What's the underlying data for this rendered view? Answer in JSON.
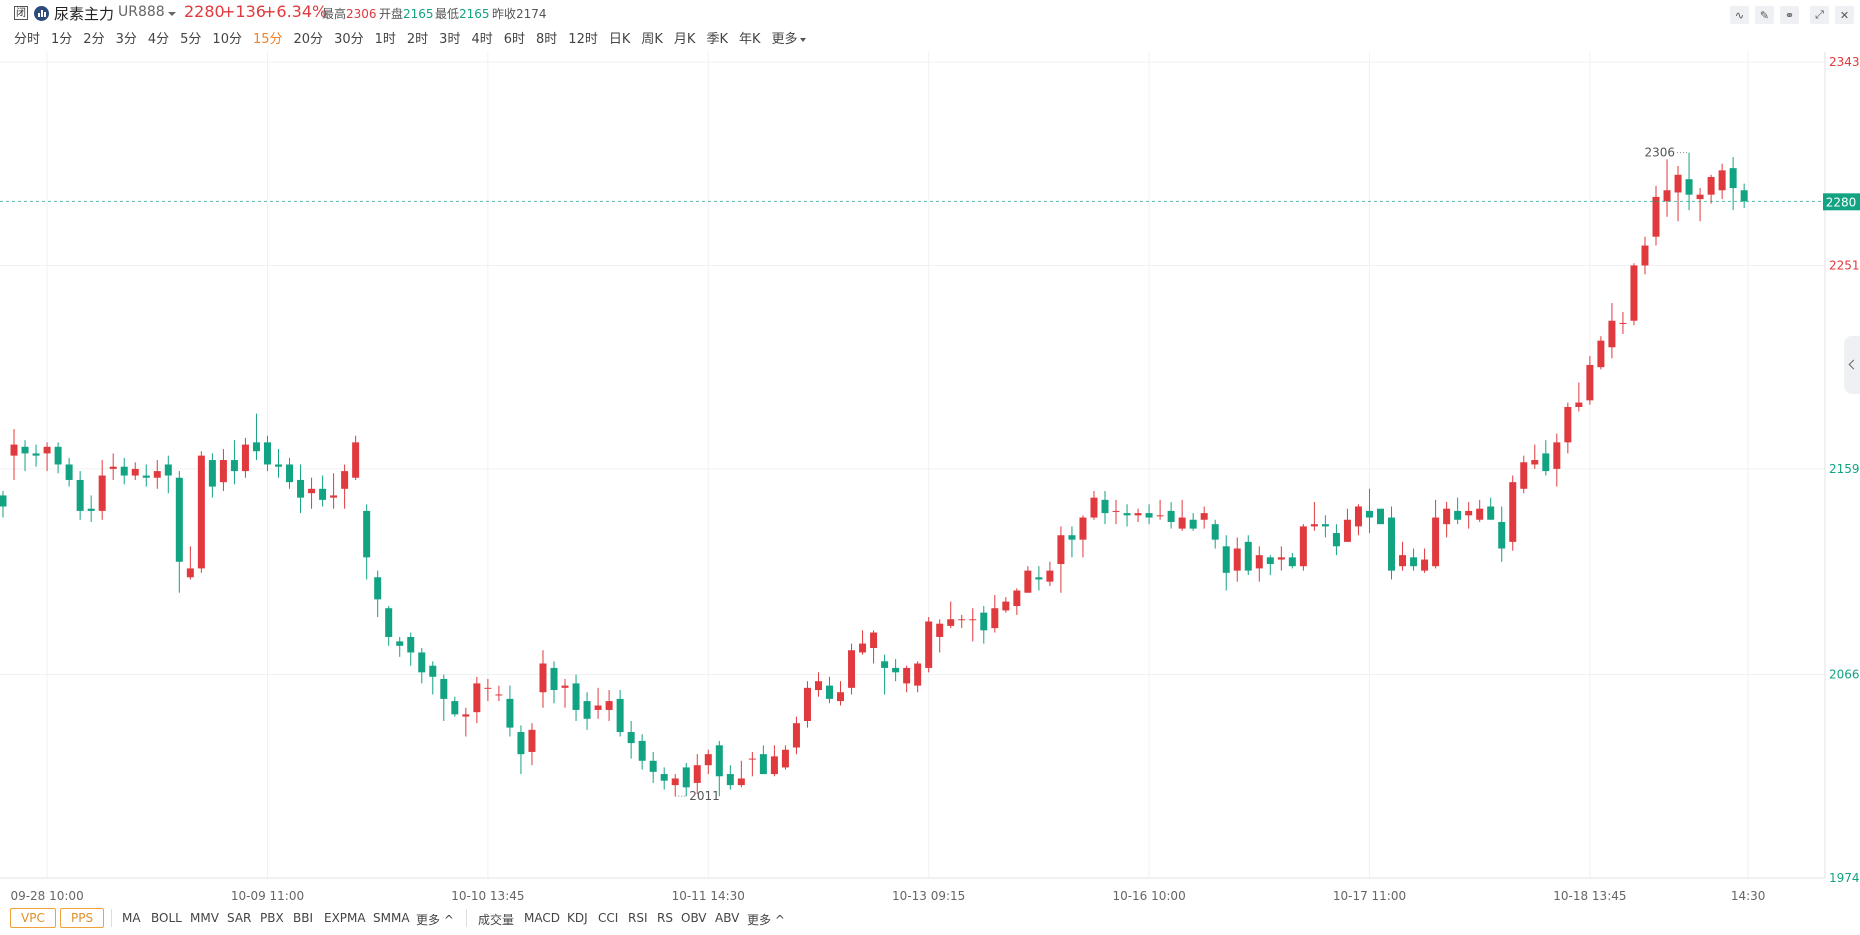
{
  "header": {
    "status": "闭",
    "name": "尿素主力",
    "code": "UR888",
    "price": "2280",
    "change": "+136",
    "change_pct": "+6.34%",
    "stats": [
      {
        "label": "最高",
        "value": "2306",
        "color": "red"
      },
      {
        "label": "开盘",
        "value": "2165",
        "color": "green"
      },
      {
        "label": "最低",
        "value": "2165",
        "color": "green"
      },
      {
        "label": "昨收",
        "value": "2174",
        "color": "gray"
      }
    ],
    "tools": [
      "indicator-icon",
      "draw-pen-icon",
      "link-icon",
      "expand-icon",
      "close-icon"
    ]
  },
  "periods": {
    "items": [
      "分时",
      "1分",
      "2分",
      "3分",
      "4分",
      "5分",
      "10分",
      "15分",
      "20分",
      "30分",
      "1时",
      "2时",
      "3时",
      "4时",
      "6时",
      "8时",
      "12时",
      "日K",
      "周K",
      "月K",
      "季K",
      "年K"
    ],
    "active": "15分",
    "more": "更多"
  },
  "indicators": {
    "boxed": [
      "VPC",
      "PPS"
    ],
    "main": [
      "MA",
      "BOLL",
      "MMV",
      "SAR",
      "PBX",
      "BBI",
      "EXPMA",
      "SMMA"
    ],
    "main_more": "更多 ^",
    "sub": [
      "成交量",
      "MACD",
      "KDJ",
      "CCI",
      "RSI",
      "RS",
      "OBV",
      "ABV"
    ],
    "sub_more": "更多 ^"
  },
  "colors": {
    "up": "#e0393e",
    "down": "#12a383"
  },
  "chart_data": {
    "type": "candlestick",
    "y_axis_ticks": [
      2343,
      2251,
      2159,
      2066,
      1974
    ],
    "ylim": [
      1974,
      2343
    ],
    "current_price": 2280,
    "high_annotation": "2306",
    "low_annotation": "2011",
    "x_ticks": [
      "09-28 10:00",
      "10-09 11:00",
      "10-10 13:45",
      "10-11 14:30",
      "10-13 09:15",
      "10-16 10:00",
      "10-17 11:00",
      "10-18 13:45",
      "14:30"
    ],
    "candles": [
      [
        2147,
        2142,
        2149,
        2137
      ],
      [
        2165,
        2170,
        2177,
        2154
      ],
      [
        2169,
        2166,
        2172,
        2158
      ],
      [
        2166,
        2165,
        2170,
        2160
      ],
      [
        2166,
        2169,
        2171,
        2158
      ],
      [
        2169,
        2161,
        2171,
        2157
      ],
      [
        2161,
        2154,
        2164,
        2151
      ],
      [
        2154,
        2140,
        2158,
        2136
      ],
      [
        2141,
        2140,
        2147,
        2135
      ],
      [
        2140,
        2156,
        2163,
        2136
      ],
      [
        2159,
        2160,
        2166,
        2154
      ],
      [
        2160,
        2156,
        2164,
        2152
      ],
      [
        2156,
        2159,
        2162,
        2154
      ],
      [
        2156,
        2155,
        2161,
        2151
      ],
      [
        2155,
        2158,
        2163,
        2150
      ],
      [
        2161,
        2156,
        2165,
        2148
      ],
      [
        2155,
        2117,
        2158,
        2103
      ],
      [
        2110,
        2114,
        2124,
        2109
      ],
      [
        2114,
        2165,
        2167,
        2112
      ],
      [
        2163,
        2151,
        2166,
        2146
      ],
      [
        2153,
        2163,
        2168,
        2149
      ],
      [
        2163,
        2158,
        2172,
        2152
      ],
      [
        2158,
        2170,
        2173,
        2155
      ],
      [
        2171,
        2167,
        2184,
        2163
      ],
      [
        2171,
        2161,
        2174,
        2158
      ],
      [
        2161,
        2160,
        2168,
        2155
      ],
      [
        2161,
        2153,
        2164,
        2150
      ],
      [
        2154,
        2146,
        2161,
        2139
      ],
      [
        2148,
        2150,
        2155,
        2141
      ],
      [
        2150,
        2145,
        2156,
        2142
      ],
      [
        2146,
        2147,
        2157,
        2141
      ],
      [
        2150,
        2158,
        2161,
        2141
      ],
      [
        2155,
        2171,
        2174,
        2154
      ],
      [
        2140,
        2119,
        2143,
        2109
      ],
      [
        2110,
        2100,
        2113,
        2092
      ],
      [
        2096,
        2083,
        2097,
        2079
      ],
      [
        2081,
        2079,
        2083,
        2074
      ],
      [
        2083,
        2076,
        2085,
        2070
      ],
      [
        2076,
        2067,
        2078,
        2062
      ],
      [
        2070,
        2065,
        2072,
        2057
      ],
      [
        2064,
        2055,
        2066,
        2045
      ],
      [
        2054,
        2048,
        2056,
        2047
      ],
      [
        2047,
        2048,
        2051,
        2038
      ],
      [
        2049,
        2062,
        2065,
        2044
      ],
      [
        2060,
        2060,
        2064,
        2054
      ],
      [
        2057,
        2057,
        2061,
        2054
      ],
      [
        2055,
        2042,
        2061,
        2038
      ],
      [
        2040,
        2030,
        2043,
        2021
      ],
      [
        2031,
        2041,
        2044,
        2025
      ],
      [
        2058,
        2071,
        2077,
        2051
      ],
      [
        2069,
        2059,
        2072,
        2053
      ],
      [
        2060,
        2061,
        2064,
        2051
      ],
      [
        2062,
        2050,
        2066,
        2045
      ],
      [
        2054,
        2046,
        2058,
        2041
      ],
      [
        2050,
        2052,
        2060,
        2046
      ],
      [
        2050,
        2054,
        2059,
        2045
      ],
      [
        2055,
        2040,
        2059,
        2038
      ],
      [
        2040,
        2035,
        2045,
        2028
      ],
      [
        2036,
        2027,
        2039,
        2023
      ],
      [
        2027,
        2022,
        2031,
        2017
      ],
      [
        2021,
        2018,
        2024,
        2014
      ],
      [
        2016,
        2019,
        2021,
        2011
      ],
      [
        2024,
        2015,
        2026,
        2011
      ],
      [
        2017,
        2025,
        2030,
        2012
      ],
      [
        2025,
        2030,
        2032,
        2021
      ],
      [
        2034,
        2020,
        2036,
        2011
      ],
      [
        2021,
        2016,
        2025,
        2014
      ],
      [
        2016,
        2019,
        2027,
        2015
      ],
      [
        2028,
        2028,
        2031,
        2020
      ],
      [
        2030,
        2021,
        2034,
        2021
      ],
      [
        2021,
        2029,
        2034,
        2020
      ],
      [
        2024,
        2032,
        2034,
        2023
      ],
      [
        2033,
        2044,
        2047,
        2030
      ],
      [
        2045,
        2060,
        2063,
        2042
      ],
      [
        2059,
        2063,
        2067,
        2056
      ],
      [
        2061,
        2055,
        2065,
        2053
      ],
      [
        2054,
        2058,
        2063,
        2052
      ],
      [
        2060,
        2077,
        2080,
        2057
      ],
      [
        2076,
        2080,
        2086,
        2075
      ],
      [
        2078,
        2085,
        2086,
        2071
      ],
      [
        2072,
        2069,
        2075,
        2057
      ],
      [
        2069,
        2067,
        2073,
        2063
      ],
      [
        2062,
        2069,
        2070,
        2058
      ],
      [
        2061,
        2071,
        2072,
        2058
      ],
      [
        2069,
        2090,
        2092,
        2067
      ],
      [
        2083,
        2089,
        2091,
        2076
      ],
      [
        2088,
        2091,
        2099,
        2087
      ],
      [
        2091,
        2091,
        2093,
        2087
      ],
      [
        2091,
        2091,
        2096,
        2081
      ],
      [
        2094,
        2086,
        2097,
        2080
      ],
      [
        2087,
        2096,
        2102,
        2085
      ],
      [
        2095,
        2099,
        2101,
        2094
      ],
      [
        2097,
        2104,
        2105,
        2093
      ],
      [
        2103,
        2113,
        2115,
        2103
      ],
      [
        2110,
        2109,
        2115,
        2104
      ],
      [
        2108,
        2113,
        2117,
        2106
      ],
      [
        2116,
        2129,
        2133,
        2103
      ],
      [
        2129,
        2127,
        2133,
        2119
      ],
      [
        2127,
        2137,
        2138,
        2119
      ],
      [
        2137,
        2146,
        2149,
        2136
      ],
      [
        2145,
        2139,
        2149,
        2134
      ],
      [
        2140,
        2140,
        2145,
        2134
      ],
      [
        2139,
        2138,
        2143,
        2133
      ],
      [
        2138,
        2139,
        2141,
        2135
      ],
      [
        2139,
        2137,
        2143,
        2134
      ],
      [
        2138,
        2138,
        2145,
        2136
      ],
      [
        2140,
        2135,
        2144,
        2132
      ],
      [
        2132,
        2137,
        2145,
        2131
      ],
      [
        2136,
        2132,
        2139,
        2131
      ],
      [
        2136,
        2139,
        2142,
        2132
      ],
      [
        2134,
        2127,
        2136,
        2123
      ],
      [
        2124,
        2112,
        2129,
        2104
      ],
      [
        2113,
        2123,
        2128,
        2108
      ],
      [
        2126,
        2113,
        2129,
        2111
      ],
      [
        2114,
        2120,
        2124,
        2108
      ],
      [
        2119,
        2116,
        2120,
        2111
      ],
      [
        2118,
        2119,
        2124,
        2113
      ],
      [
        2119,
        2115,
        2121,
        2114
      ],
      [
        2115,
        2133,
        2134,
        2113
      ],
      [
        2133,
        2134,
        2144,
        2131
      ],
      [
        2134,
        2133,
        2138,
        2128
      ],
      [
        2130,
        2124,
        2134,
        2120
      ],
      [
        2126,
        2136,
        2141,
        2126
      ],
      [
        2133,
        2142,
        2143,
        2129
      ],
      [
        2140,
        2137,
        2150,
        2130
      ],
      [
        2141,
        2134,
        2140,
        2135
      ],
      [
        2137,
        2113,
        2142,
        2109
      ],
      [
        2115,
        2120,
        2126,
        2113
      ],
      [
        2119,
        2115,
        2123,
        2113
      ],
      [
        2113,
        2118,
        2123,
        2112
      ],
      [
        2115,
        2137,
        2145,
        2114
      ],
      [
        2134,
        2141,
        2144,
        2128
      ],
      [
        2140,
        2136,
        2146,
        2134
      ],
      [
        2138,
        2140,
        2144,
        2132
      ],
      [
        2136,
        2141,
        2145,
        2135
      ],
      [
        2142,
        2136,
        2146,
        2136
      ],
      [
        2135,
        2123,
        2142,
        2117
      ],
      [
        2126,
        2153,
        2156,
        2122
      ],
      [
        2150,
        2162,
        2165,
        2148
      ],
      [
        2161,
        2163,
        2170,
        2159
      ],
      [
        2166,
        2158,
        2172,
        2156
      ],
      [
        2159,
        2171,
        2175,
        2151
      ],
      [
        2171,
        2187,
        2189,
        2166
      ],
      [
        2187,
        2189,
        2198,
        2185
      ],
      [
        2190,
        2206,
        2210,
        2188
      ],
      [
        2205,
        2217,
        2219,
        2204
      ],
      [
        2214,
        2226,
        2234,
        2209
      ],
      [
        2225,
        2225,
        2230,
        2220
      ],
      [
        2226,
        2251,
        2252,
        2224
      ],
      [
        2251,
        2260,
        2264,
        2247
      ],
      [
        2264,
        2282,
        2287,
        2260
      ],
      [
        2280,
        2285,
        2299,
        2273
      ],
      [
        2284,
        2292,
        2296,
        2271
      ],
      [
        2290,
        2283,
        2302,
        2276
      ],
      [
        2281,
        2283,
        2286,
        2271
      ],
      [
        2283,
        2291,
        2292,
        2279
      ],
      [
        2285,
        2294,
        2297,
        2281
      ],
      [
        2295,
        2286,
        2300,
        2276
      ],
      [
        2285,
        2280,
        2288,
        2277
      ]
    ]
  }
}
